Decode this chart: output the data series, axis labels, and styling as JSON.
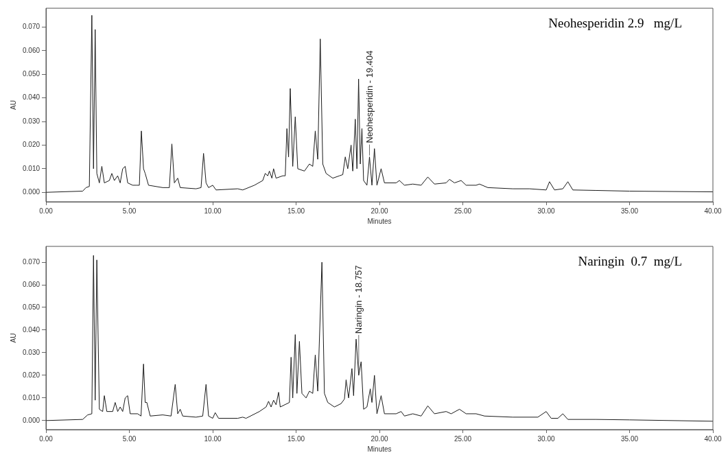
{
  "chart_data": [
    {
      "type": "line",
      "xlabel": "Minutes",
      "ylabel": "AU",
      "color": "#1a1a1a",
      "grid": false,
      "xlim": [
        0,
        40
      ],
      "ylim": [
        -0.004,
        0.078
      ],
      "xticks": [
        {
          "value": 0,
          "label": "0.00"
        },
        {
          "value": 5,
          "label": "5.00"
        },
        {
          "value": 10,
          "label": "10.00"
        },
        {
          "value": 15,
          "label": "15.00"
        },
        {
          "value": 20,
          "label": "20.00"
        },
        {
          "value": 25,
          "label": "25.00"
        },
        {
          "value": 30,
          "label": "30.00"
        },
        {
          "value": 35,
          "label": "35.00"
        },
        {
          "value": 40,
          "label": "40.00"
        }
      ],
      "yticks": [
        {
          "value": 0,
          "label": "0.000"
        },
        {
          "value": 0.01,
          "label": "0.010"
        },
        {
          "value": 0.02,
          "label": "0.020"
        },
        {
          "value": 0.03,
          "label": "0.030"
        },
        {
          "value": 0.04,
          "label": "0.040"
        },
        {
          "value": 0.05,
          "label": "0.050"
        },
        {
          "value": 0.06,
          "label": "0.060"
        },
        {
          "value": 0.07,
          "label": "0.070"
        }
      ],
      "annotations": [
        "Neohesperidin 2.9   mg/L",
        {
          "text": "Neohesperidin - 19.404",
          "x": 19.404,
          "y": 0.015
        }
      ],
      "x": [
        0,
        2.2,
        2.4,
        2.6,
        2.75,
        2.85,
        2.95,
        3.05,
        3.2,
        3.35,
        3.5,
        3.8,
        3.95,
        4.1,
        4.3,
        4.45,
        4.6,
        4.75,
        4.9,
        5.2,
        5.4,
        5.6,
        5.72,
        5.85,
        5.95,
        6.15,
        7.0,
        7.4,
        7.55,
        7.7,
        7.9,
        8.05,
        9.0,
        9.3,
        9.45,
        9.6,
        9.75,
        10.0,
        10.2,
        11.5,
        11.8,
        12.5,
        13.0,
        13.15,
        13.3,
        13.4,
        13.55,
        13.65,
        13.8,
        14.2,
        14.35,
        14.45,
        14.55,
        14.65,
        14.8,
        14.95,
        15.1,
        15.5,
        15.8,
        16.0,
        16.15,
        16.3,
        16.45,
        16.6,
        16.8,
        17.2,
        17.6,
        17.8,
        17.95,
        18.1,
        18.3,
        18.4,
        18.55,
        18.65,
        18.75,
        18.85,
        18.95,
        19.05,
        19.25,
        19.404,
        19.55,
        19.7,
        19.85,
        20.1,
        20.3,
        21.0,
        21.2,
        21.5,
        22.0,
        22.5,
        22.9,
        23.3,
        24.0,
        24.2,
        24.5,
        24.9,
        25.2,
        25.8,
        26.0,
        26.5,
        28.0,
        29.0,
        30.0,
        30.2,
        30.5,
        31.0,
        31.3,
        31.6,
        33,
        35,
        40
      ],
      "values": [
        0,
        0.0005,
        0.002,
        0.0025,
        0.075,
        0.01,
        0.069,
        0.008,
        0.004,
        0.011,
        0.004,
        0.005,
        0.008,
        0.005,
        0.007,
        0.004,
        0.01,
        0.011,
        0.004,
        0.003,
        0.003,
        0.003,
        0.026,
        0.01,
        0.008,
        0.003,
        0.002,
        0.002,
        0.0205,
        0.004,
        0.006,
        0.002,
        0.0015,
        0.002,
        0.0165,
        0.004,
        0.002,
        0.003,
        0.001,
        0.0015,
        0.001,
        0.003,
        0.005,
        0.008,
        0.007,
        0.009,
        0.006,
        0.01,
        0.006,
        0.007,
        0.007,
        0.027,
        0.015,
        0.044,
        0.011,
        0.032,
        0.01,
        0.009,
        0.012,
        0.011,
        0.026,
        0.014,
        0.065,
        0.012,
        0.008,
        0.006,
        0.007,
        0.0075,
        0.015,
        0.01,
        0.02,
        0.009,
        0.031,
        0.01,
        0.048,
        0.012,
        0.027,
        0.005,
        0.003,
        0.015,
        0.003,
        0.0185,
        0.003,
        0.01,
        0.004,
        0.004,
        0.005,
        0.003,
        0.0035,
        0.003,
        0.0065,
        0.0035,
        0.004,
        0.0055,
        0.004,
        0.005,
        0.003,
        0.003,
        0.0035,
        0.002,
        0.0015,
        0.0015,
        0.001,
        0.0045,
        0.001,
        0.0015,
        0.0045,
        0.001,
        0.0008,
        0.0005,
        0.0002
      ]
    },
    {
      "type": "line",
      "xlabel": "Minutes",
      "ylabel": "AU",
      "color": "#1a1a1a",
      "grid": false,
      "xlim": [
        0,
        40
      ],
      "ylim": [
        -0.004,
        0.077
      ],
      "xticks": [
        {
          "value": 0,
          "label": "0.00"
        },
        {
          "value": 5,
          "label": "5.00"
        },
        {
          "value": 10,
          "label": "10.00"
        },
        {
          "value": 15,
          "label": "15.00"
        },
        {
          "value": 20,
          "label": "20.00"
        },
        {
          "value": 25,
          "label": "25.00"
        },
        {
          "value": 30,
          "label": "30.00"
        },
        {
          "value": 35,
          "label": "35.00"
        },
        {
          "value": 40,
          "label": "40.00"
        }
      ],
      "yticks": [
        {
          "value": 0,
          "label": "0.000"
        },
        {
          "value": 0.01,
          "label": "0.010"
        },
        {
          "value": 0.02,
          "label": "0.020"
        },
        {
          "value": 0.03,
          "label": "0.030"
        },
        {
          "value": 0.04,
          "label": "0.040"
        },
        {
          "value": 0.05,
          "label": "0.050"
        },
        {
          "value": 0.06,
          "label": "0.060"
        },
        {
          "value": 0.07,
          "label": "0.070"
        }
      ],
      "annotations": [
        "Naringin  0.7  mg/L",
        {
          "text": "Naringin - 18.757",
          "x": 18.757,
          "y": 0.02
        }
      ],
      "x": [
        0,
        2.2,
        2.5,
        2.75,
        2.85,
        2.95,
        3.05,
        3.2,
        3.4,
        3.5,
        3.65,
        4.0,
        4.15,
        4.3,
        4.45,
        4.6,
        4.75,
        4.9,
        5.05,
        5.5,
        5.7,
        5.85,
        5.95,
        6.05,
        6.25,
        7.0,
        7.5,
        7.75,
        7.9,
        8.05,
        8.2,
        9.0,
        9.4,
        9.6,
        9.75,
        10.0,
        10.15,
        10.35,
        11.5,
        11.8,
        12.0,
        12.8,
        13.2,
        13.35,
        13.5,
        13.65,
        13.8,
        13.95,
        14.05,
        14.6,
        14.7,
        14.8,
        14.95,
        15.05,
        15.2,
        15.35,
        15.6,
        15.8,
        16.0,
        16.15,
        16.3,
        16.55,
        16.7,
        16.9,
        17.3,
        17.7,
        17.9,
        18.0,
        18.15,
        18.35,
        18.45,
        18.6,
        18.757,
        18.9,
        19.05,
        19.25,
        19.45,
        19.55,
        19.7,
        19.85,
        20.1,
        20.3,
        21.0,
        21.3,
        21.5,
        22.0,
        22.5,
        22.9,
        23.3,
        24.0,
        24.3,
        24.8,
        25.2,
        25.8,
        26.3,
        28,
        29.5,
        30.0,
        30.3,
        30.7,
        31.0,
        31.3,
        33,
        35,
        40
      ],
      "values": [
        0,
        0.0005,
        0.0025,
        0.003,
        0.073,
        0.009,
        0.071,
        0.005,
        0.004,
        0.011,
        0.004,
        0.004,
        0.008,
        0.004,
        0.006,
        0.004,
        0.01,
        0.011,
        0.003,
        0.003,
        0.002,
        0.025,
        0.008,
        0.008,
        0.002,
        0.0025,
        0.002,
        0.016,
        0.003,
        0.005,
        0.002,
        0.0015,
        0.002,
        0.016,
        0.002,
        0.001,
        0.0035,
        0.001,
        0.001,
        0.0015,
        0.001,
        0.004,
        0.006,
        0.0085,
        0.006,
        0.009,
        0.007,
        0.0125,
        0.006,
        0.008,
        0.028,
        0.01,
        0.038,
        0.012,
        0.035,
        0.012,
        0.01,
        0.013,
        0.012,
        0.029,
        0.013,
        0.07,
        0.012,
        0.008,
        0.006,
        0.0075,
        0.0095,
        0.018,
        0.01,
        0.023,
        0.011,
        0.036,
        0.02,
        0.026,
        0.005,
        0.006,
        0.014,
        0.008,
        0.02,
        0.003,
        0.011,
        0.003,
        0.003,
        0.004,
        0.002,
        0.003,
        0.002,
        0.0065,
        0.003,
        0.004,
        0.003,
        0.005,
        0.003,
        0.003,
        0.002,
        0.0015,
        0.0015,
        0.004,
        0.001,
        0.001,
        0.003,
        0.0005,
        0.0005,
        0.0003,
        -0.0003
      ]
    }
  ]
}
